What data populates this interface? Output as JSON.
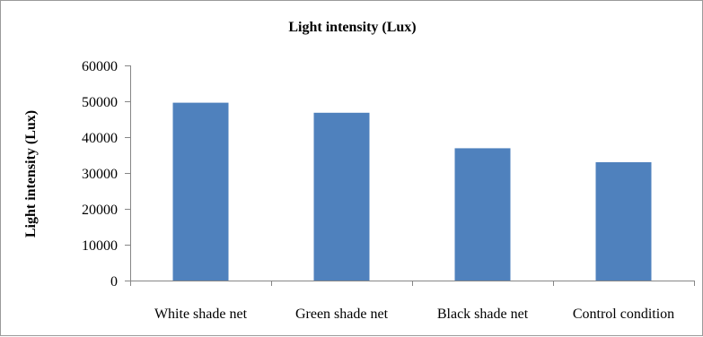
{
  "chart_data": {
    "type": "bar",
    "title": "Light intensity (Lux)",
    "xlabel": "",
    "ylabel": "Light intensity (Lux)",
    "categories": [
      "White shade net",
      "Green shade net",
      "Black shade net",
      "Control condition"
    ],
    "values": [
      49600,
      46800,
      36900,
      33000
    ],
    "ylim": [
      0,
      60000
    ],
    "yticks": [
      0,
      10000,
      20000,
      30000,
      40000,
      50000,
      60000
    ],
    "grid": false,
    "legend": "none",
    "bar_color": "#4f81bd",
    "axis_color": "#868686"
  }
}
